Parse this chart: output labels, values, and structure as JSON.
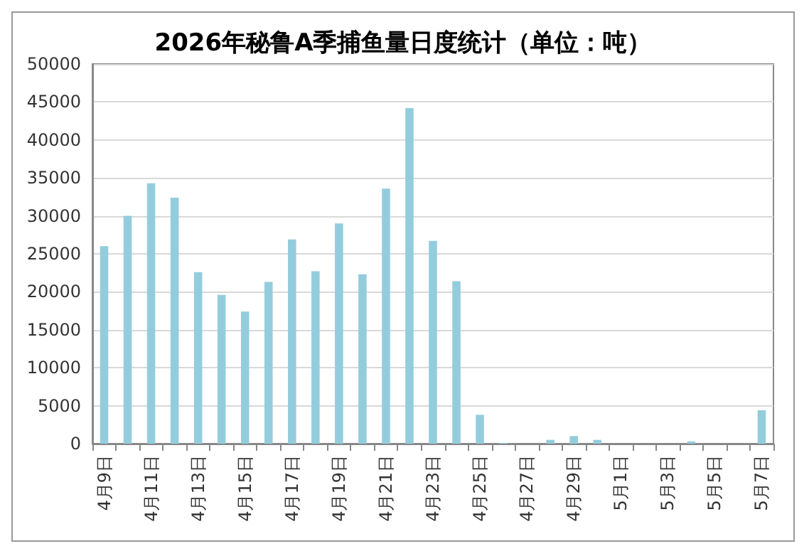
{
  "chart_data": {
    "type": "bar",
    "title": "2026年秘鲁A季捕鱼量日度统计（单位：吨）",
    "categories": [
      "4月9日",
      null,
      "4月11日",
      null,
      "4月13日",
      null,
      "4月15日",
      null,
      "4月17日",
      null,
      "4月19日",
      null,
      "4月21日",
      null,
      "4月23日",
      null,
      "4月25日",
      null,
      "4月27日",
      null,
      "4月29日",
      null,
      "5月1日",
      null,
      "5月3日",
      null,
      "5月5日",
      null,
      "5月7日"
    ],
    "values": [
      26000,
      30000,
      34300,
      32400,
      22600,
      19600,
      17400,
      21300,
      26900,
      22700,
      29000,
      22300,
      33600,
      44200,
      26700,
      21400,
      3800,
      100,
      0,
      500,
      1000,
      500,
      0,
      0,
      0,
      300,
      0,
      0,
      4400
    ],
    "color": "#93cddd",
    "ylim": [
      0,
      50000
    ],
    "yticks": [
      0,
      5000,
      10000,
      15000,
      20000,
      25000,
      30000,
      35000,
      40000,
      45000,
      50000
    ],
    "grid": "y"
  }
}
